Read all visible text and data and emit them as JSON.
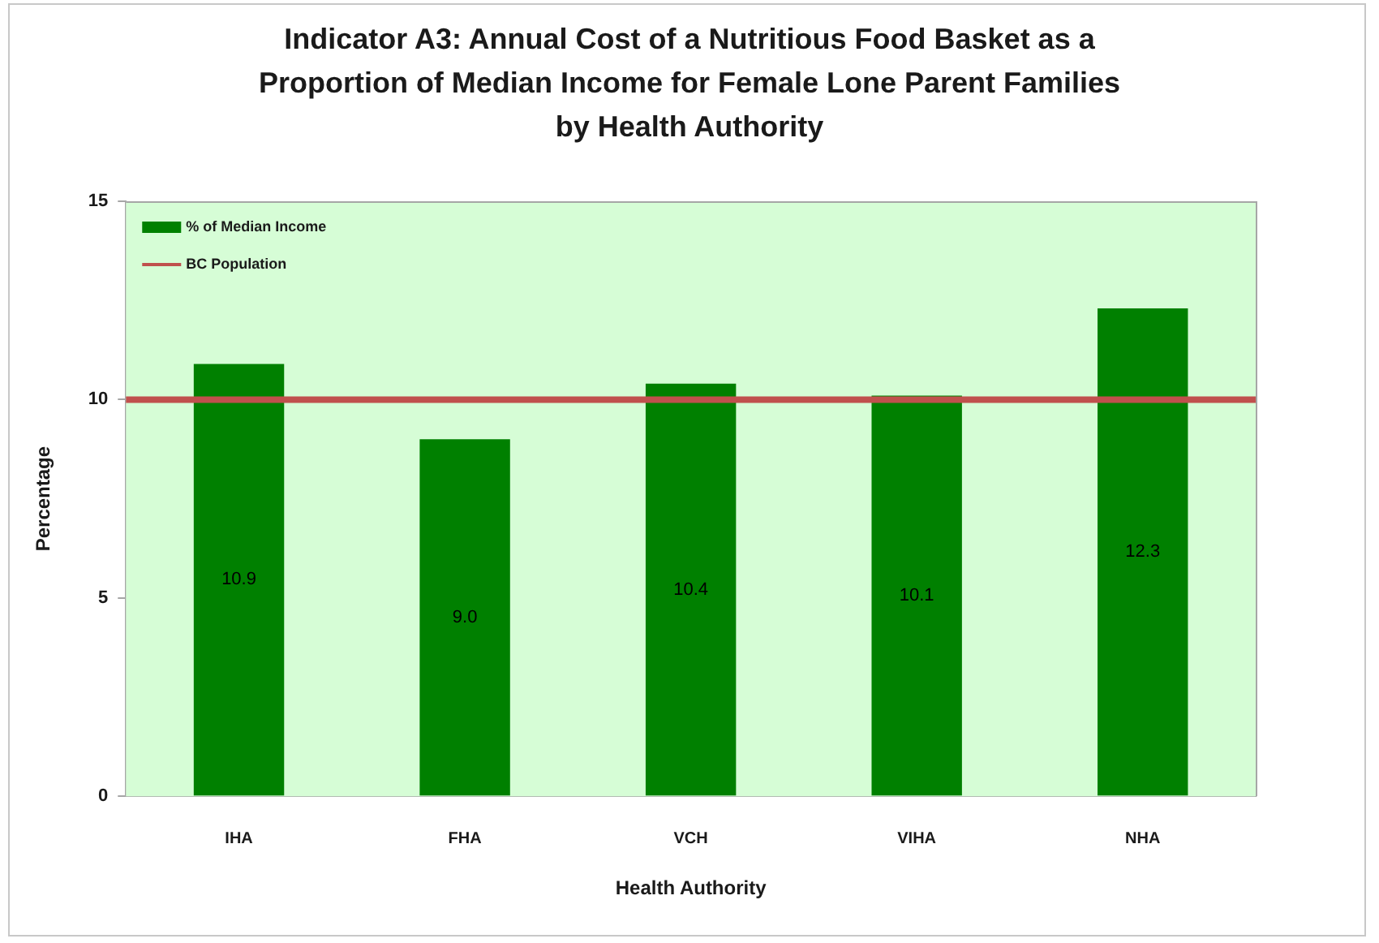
{
  "chart_data": {
    "type": "bar",
    "title": "Indicator A3: Annual Cost of a Nutritious Food Basket as a Proportion of Median Income for Female Lone Parent Families by Health Authority",
    "xlabel": "Health Authority",
    "ylabel": "Percentage",
    "categories": [
      "IHA",
      "FHA",
      "VCH",
      "VIHA",
      "NHA"
    ],
    "series": [
      {
        "name": "% of Median Income",
        "color": "#008000",
        "values": [
          10.9,
          9.0,
          10.4,
          10.1,
          12.3
        ],
        "value_labels": [
          "10.9",
          "9.0",
          "10.4",
          "10.1",
          "12.3"
        ]
      }
    ],
    "ylim": [
      0,
      15
    ],
    "yticks": [
      0,
      5,
      10,
      15
    ],
    "ref_lines": [
      {
        "axis": "y",
        "value": 10,
        "label": "BC Population",
        "color": "#c0504d"
      }
    ],
    "legend": "top left"
  }
}
